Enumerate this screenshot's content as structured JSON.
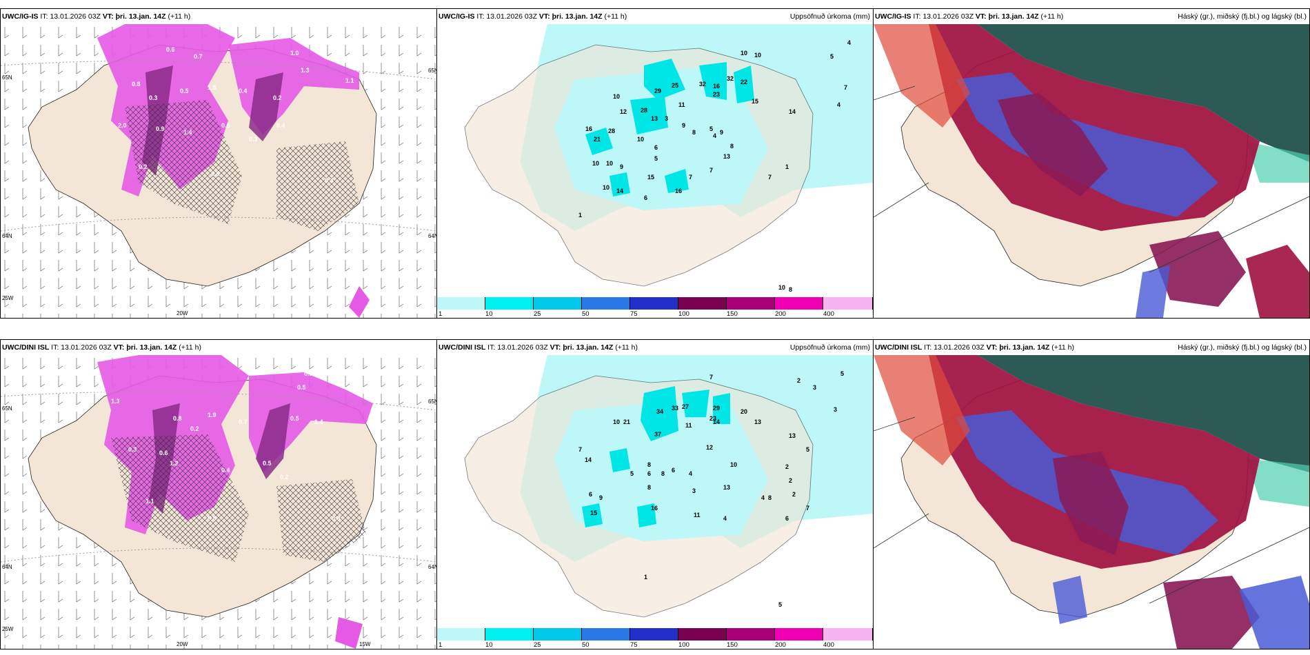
{
  "colors": {
    "land": "#f3e6d6",
    "sea": "#ffffff",
    "precip_light": "#bdf7f7",
    "precip_mid": "#00e5e5",
    "snow_pink": "#e55ae5",
    "snow_dark": "#8a2b8a",
    "cloud_high": "#2e5a55",
    "cloud_mid": "#a01040",
    "cloud_low": "#4a5ad6"
  },
  "rows": [
    {
      "model": "UWC/IG-IS",
      "it_label": "IT:",
      "it_value": "13.01.2026 03Z",
      "vt_label": "VT:",
      "vt_value": "þri. 13.jan. 14Z",
      "offset": "(+11 h)",
      "precip_title": "Uppsöfnuð úrkoma (mm)",
      "cloud_title": "Háský (gr.), miðský (fj.bl.) og lágský (bl.)",
      "lat_labels": [
        "65N",
        "64N",
        "25W",
        "20W",
        "65N",
        "64N"
      ],
      "snow_values": [
        "0.6",
        "0.7",
        "1.0",
        "1.3",
        "0.8",
        "0.3",
        "0.5",
        "1.5",
        "0.4",
        "0.2",
        "2.0",
        "0.9",
        "1.4",
        "0.6",
        "0.3",
        "0.4",
        "0.2",
        "0.6",
        "0.4",
        "1.1"
      ],
      "precip_values": [
        "10",
        "10",
        "4",
        "5",
        "7",
        "29",
        "25",
        "32",
        "16",
        "32",
        "22",
        "10",
        "12",
        "28",
        "11",
        "13",
        "3",
        "23",
        "15",
        "14",
        "16",
        "21",
        "28",
        "10",
        "9",
        "8",
        "5",
        "6",
        "4",
        "9",
        "10",
        "10",
        "9",
        "5",
        "13",
        "8",
        "7",
        "15",
        "10",
        "14",
        "16",
        "6",
        "7",
        "7",
        "1",
        "4",
        "1",
        "10",
        "8"
      ]
    },
    {
      "model": "UWC/DINI ISL",
      "it_label": "IT:",
      "it_value": "13.01.2026 03Z",
      "vt_label": "VT:",
      "vt_value": "þri. 13.jan. 14Z",
      "offset": "(+11 h)",
      "precip_title": "Uppsöfnuð úrkoma (mm)",
      "cloud_title": "Háský (gr.), miðský (fj.bl.) og lágský (bl.)",
      "lat_labels": [
        "65N",
        "64N",
        "25W",
        "20W",
        "15W",
        "65N",
        "64N"
      ],
      "snow_values": [
        "0.6",
        "0.1",
        "0.5",
        "0.4",
        "1.3",
        "0.8",
        "0.2",
        "1.9",
        "0.7",
        "0.5",
        "1.4",
        "0.3",
        "0.6",
        "1.2",
        "0.4",
        "0.5",
        "0.2",
        "1.1",
        "0.8",
        "0.9"
      ],
      "precip_values": [
        "7",
        "5",
        "3",
        "3",
        "2",
        "27",
        "34",
        "33",
        "29",
        "20",
        "10",
        "13",
        "21",
        "37",
        "11",
        "14",
        "23",
        "13",
        "12",
        "10",
        "8",
        "7",
        "14",
        "5",
        "6",
        "6",
        "4",
        "8",
        "13",
        "2",
        "9",
        "6",
        "16",
        "15",
        "8",
        "3",
        "2",
        "8",
        "7",
        "11",
        "2",
        "5",
        "1",
        "5",
        "4",
        "4",
        "6"
      ]
    }
  ],
  "legend": {
    "labels": [
      "1",
      "10",
      "25",
      "50",
      "75",
      "100",
      "150",
      "200",
      "400"
    ],
    "colors": [
      "#bdf7f7",
      "#00f0f0",
      "#00c8e6",
      "#2a78e6",
      "#2030c8",
      "#7a0050",
      "#a8007a",
      "#f000b4",
      "#f5b4f0"
    ]
  }
}
